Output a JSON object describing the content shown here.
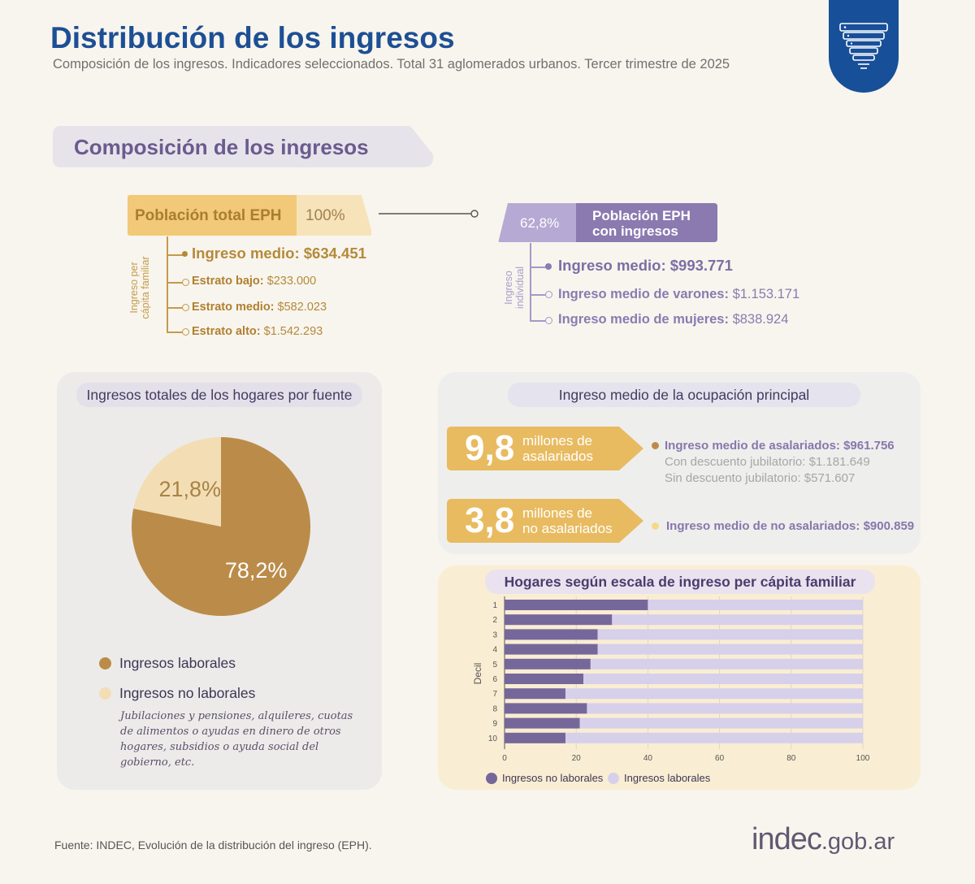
{
  "header": {
    "title": "Distribución de los ingresos",
    "subtitle": "Composición de los ingresos. Indicadores seleccionados. Total 31 aglomerados urbanos. Tercer trimestre de 2025"
  },
  "section": {
    "title": "Composición de los ingresos"
  },
  "poblacion_total": {
    "label": "Población total EPH",
    "pct": "100%",
    "axis_label_line1": "Ingreso per",
    "axis_label_line2": "cápita familiar",
    "items": [
      {
        "label": "Ingreso medio:",
        "value": "$634.451"
      },
      {
        "label": "Estrato bajo:",
        "value": "$233.000"
      },
      {
        "label": "Estrato medio:",
        "value": "$582.023"
      },
      {
        "label": "Estrato alto:",
        "value": "$1.542.293"
      }
    ]
  },
  "poblacion_con_ingresos": {
    "pct": "62,8%",
    "label_line1": "Población EPH",
    "label_line2": "con ingresos",
    "axis_label_line1": "Ingreso",
    "axis_label_line2": "individual",
    "items": [
      {
        "label": "Ingreso medio:",
        "value": "$993.771"
      },
      {
        "label": "Ingreso medio de varones:",
        "value": "$1.153.171"
      },
      {
        "label": "Ingreso medio de mujeres:",
        "value": "$838.924"
      }
    ]
  },
  "colors": {
    "gold": "#bb8c49",
    "light_gold": "#f3ddb5",
    "purple": "#76679b",
    "lavender": "#d7d0ea",
    "title_blue": "#1d4f94",
    "badge_blue": "#174f99",
    "arrow_gold": "#e8bb60"
  },
  "icons": {
    "badge": "stacked-layers-icon",
    "connector": "line-connector-icon"
  },
  "ocupacion": {
    "title": "Ingreso medio de la ocupación principal",
    "asalariados": {
      "number": "9,8",
      "label_line1": "millones de",
      "label_line2": "asalariados",
      "main": "Ingreso medio de asalariados: $961.756",
      "sub1": "Con descuento jubilatorio: $1.181.649",
      "sub2": "Sin descuento jubilatorio: $571.607"
    },
    "no_asalariados": {
      "number": "3,8",
      "label_line1": "millones de",
      "label_line2": "no asalariados",
      "main": "Ingreso medio de no asalariados: $900.859"
    }
  },
  "pie_panel": {
    "title": "Ingresos totales de los hogares por fuente",
    "legend": [
      "Ingresos laborales",
      "Ingresos no laborales"
    ],
    "note": "Jubilaciones y pensiones, alquileres, cuotas de alimentos o ayudas en dinero de otros hogares, subsidios o ayuda social del gobierno, etc."
  },
  "bars_panel": {
    "title": "Hogares según escala de ingreso per cápita familiar",
    "legend": [
      "Ingresos no laborales",
      "Ingresos laborales"
    ]
  },
  "chart_data": [
    {
      "type": "pie",
      "title": "Ingresos totales de los hogares por fuente",
      "labels": [
        "Ingresos laborales",
        "Ingresos no laborales"
      ],
      "values": [
        78.2,
        21.8
      ],
      "value_labels": [
        "78,2%",
        "21,8%"
      ],
      "colors": [
        "#bb8c49",
        "#f3ddb5"
      ]
    },
    {
      "type": "bar",
      "orientation": "horizontal",
      "stacked": true,
      "title": "Hogares según escala de ingreso per cápita familiar",
      "ylabel": "Decil",
      "categories": [
        "1",
        "2",
        "3",
        "4",
        "5",
        "6",
        "7",
        "8",
        "9",
        "10"
      ],
      "xlim": [
        0,
        100
      ],
      "xticks": [
        0,
        20,
        40,
        60,
        80,
        100
      ],
      "grid": true,
      "legend": "bottom-left",
      "series": [
        {
          "name": "Ingresos no laborales",
          "color": "#76679b",
          "values": [
            40,
            30,
            26,
            26,
            24,
            22,
            17,
            23,
            21,
            17
          ]
        },
        {
          "name": "Ingresos laborales",
          "color": "#d7d0ea",
          "values": [
            60,
            70,
            74,
            74,
            76,
            78,
            83,
            77,
            79,
            83
          ]
        }
      ]
    }
  ],
  "footer": {
    "source": "Fuente: INDEC, Evolución de la distribución del ingreso (EPH).",
    "logo_main": "indec",
    "logo_tail": ".gob.ar"
  }
}
